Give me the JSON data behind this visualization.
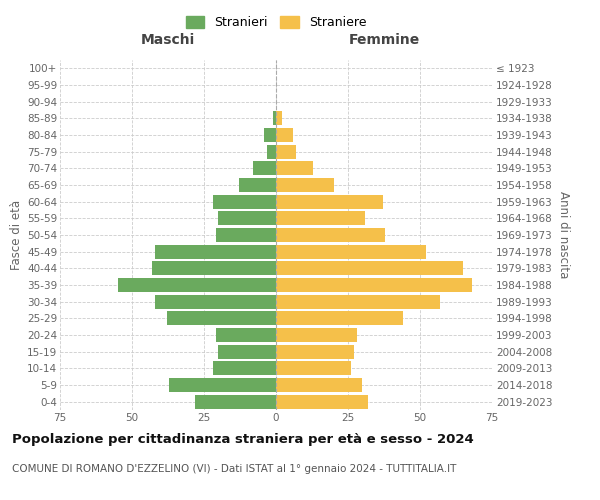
{
  "age_groups": [
    "0-4",
    "5-9",
    "10-14",
    "15-19",
    "20-24",
    "25-29",
    "30-34",
    "35-39",
    "40-44",
    "45-49",
    "50-54",
    "55-59",
    "60-64",
    "65-69",
    "70-74",
    "75-79",
    "80-84",
    "85-89",
    "90-94",
    "95-99",
    "100+"
  ],
  "birth_years": [
    "2019-2023",
    "2014-2018",
    "2009-2013",
    "2004-2008",
    "1999-2003",
    "1994-1998",
    "1989-1993",
    "1984-1988",
    "1979-1983",
    "1974-1978",
    "1969-1973",
    "1964-1968",
    "1959-1963",
    "1954-1958",
    "1949-1953",
    "1944-1948",
    "1939-1943",
    "1934-1938",
    "1929-1933",
    "1924-1928",
    "≤ 1923"
  ],
  "males": [
    28,
    37,
    22,
    20,
    21,
    38,
    42,
    55,
    43,
    42,
    21,
    20,
    22,
    13,
    8,
    3,
    4,
    1,
    0,
    0,
    0
  ],
  "females": [
    32,
    30,
    26,
    27,
    28,
    44,
    57,
    68,
    65,
    52,
    38,
    31,
    37,
    20,
    13,
    7,
    6,
    2,
    0,
    0,
    0
  ],
  "male_color": "#6aaa5e",
  "female_color": "#f5c04a",
  "bar_height": 0.85,
  "xlim": 75,
  "title": "Popolazione per cittadinanza straniera per età e sesso - 2024",
  "subtitle": "COMUNE DI ROMANO D'EZZELINO (VI) - Dati ISTAT al 1° gennaio 2024 - TUTTITALIA.IT",
  "ylabel_left": "Fasce di età",
  "ylabel_right": "Anni di nascita",
  "xlabel_left": "Maschi",
  "xlabel_right": "Femmine",
  "legend_males": "Stranieri",
  "legend_females": "Straniere",
  "background_color": "#ffffff",
  "grid_color": "#cccccc",
  "tick_color": "#666666",
  "title_fontsize": 9.5,
  "subtitle_fontsize": 7.5,
  "label_fontsize": 8.5,
  "tick_fontsize": 7.5,
  "header_fontsize": 10
}
